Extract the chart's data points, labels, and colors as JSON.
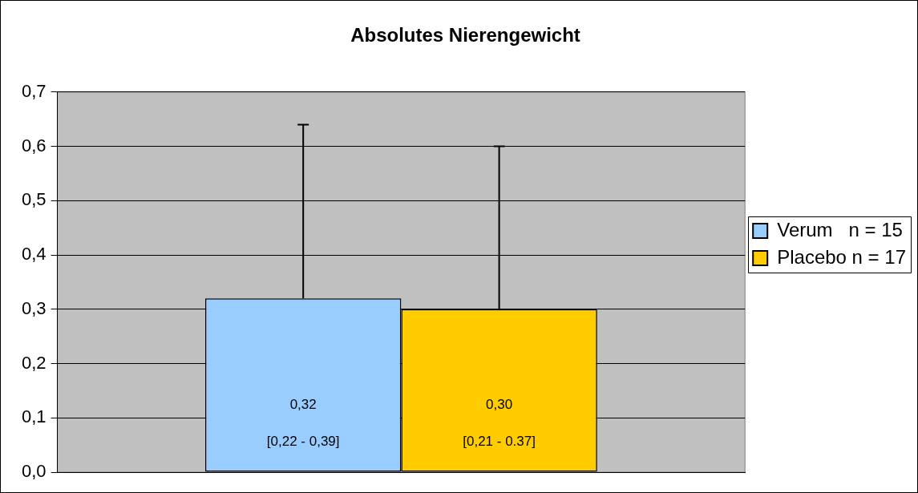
{
  "chart_data": {
    "type": "bar",
    "title": "Absolutes Nierengewicht",
    "categories": [
      null
    ],
    "series": [
      {
        "name": "Verum   n = 15",
        "color": "#99ccff",
        "values": [
          0.32
        ],
        "errors": [
          [
            0.32,
            0.64
          ]
        ],
        "value_labels": [
          "0,32\n[0,22 - 0,39]"
        ]
      },
      {
        "name": "Placebo n = 17",
        "color": "#ffcc00",
        "values": [
          0.3
        ],
        "errors": [
          [
            0.3,
            0.6
          ]
        ],
        "value_labels": [
          "0,30\n[0,21 - 0.37]"
        ]
      }
    ],
    "ylim": [
      0,
      0.7
    ],
    "yticks": [
      {
        "value": 0,
        "label": "0,0"
      },
      {
        "value": 0.1,
        "label": "0,1"
      },
      {
        "value": 0.2,
        "label": "0,2"
      },
      {
        "value": 0.3,
        "label": "0,3"
      },
      {
        "value": 0.4,
        "label": "0,4"
      },
      {
        "value": 0.5,
        "label": "0,5"
      },
      {
        "value": 0.6,
        "label": "0,6"
      },
      {
        "value": 0.7,
        "label": "0,7"
      }
    ],
    "grid": "y",
    "legend": "right"
  }
}
